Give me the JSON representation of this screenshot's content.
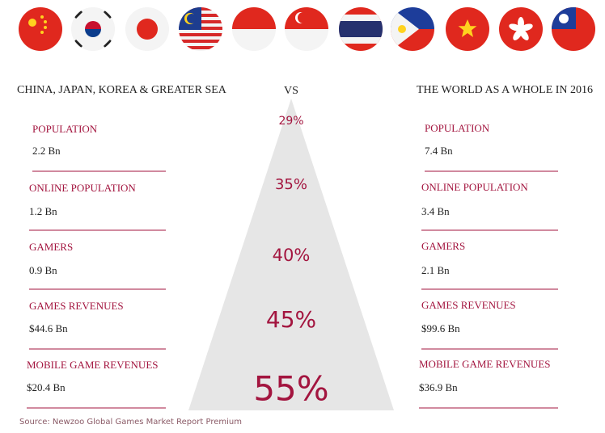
{
  "left": {
    "title": "CHINA, JAPAN, KOREA & GREATER SEA",
    "rows": [
      {
        "label": "POPULATION",
        "value": "2.2 Bn"
      },
      {
        "label": "ONLINE POPULATION",
        "value": "1.2 Bn"
      },
      {
        "label": "GAMERS",
        "value": "0.9 Bn"
      },
      {
        "label": "GAMES REVENUES",
        "value": "$44.6 Bn"
      },
      {
        "label": "MOBILE GAME REVENUES",
        "value": "$20.4 Bn"
      }
    ]
  },
  "vs": "VS",
  "pyramid": [
    "29%",
    "35%",
    "40%",
    "45%",
    "55%"
  ],
  "right": {
    "title": "THE WORLD AS A WHOLE IN 2016",
    "rows": [
      {
        "label": "POPULATION",
        "value": "7.4 Bn"
      },
      {
        "label": "ONLINE POPULATION",
        "value": "3.4 Bn"
      },
      {
        "label": "GAMERS",
        "value": "2.1 Bn"
      },
      {
        "label": "GAMES REVENUES",
        "value": "$99.6 Bn"
      },
      {
        "label": "MOBILE GAME REVENUES",
        "value": "$36.9 Bn"
      }
    ]
  },
  "source": "Source: Newzoo Global Games Market Report Premium"
}
